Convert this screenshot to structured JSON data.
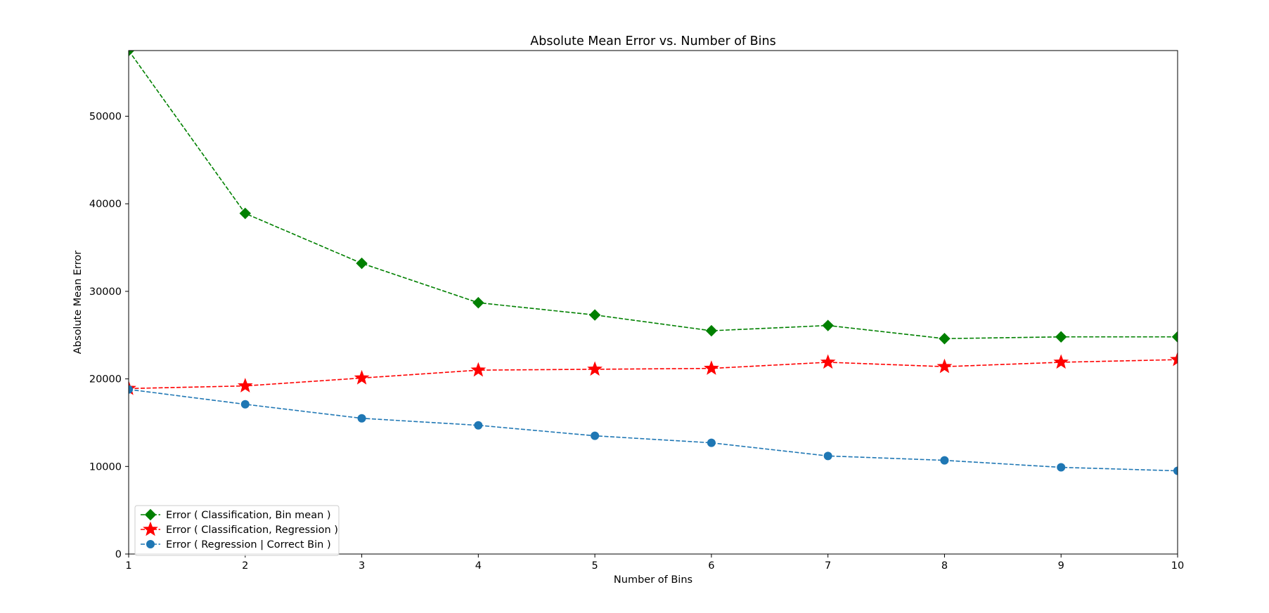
{
  "chart_data": {
    "type": "line",
    "title": "Absolute Mean Error vs. Number of Bins",
    "xlabel": "Number of Bins",
    "ylabel": "Absolute Mean Error",
    "x": [
      1,
      2,
      3,
      4,
      5,
      6,
      7,
      8,
      9,
      10
    ],
    "xlim": [
      1,
      10
    ],
    "ylim": [
      0,
      57500
    ],
    "xticks": [
      1,
      2,
      3,
      4,
      5,
      6,
      7,
      8,
      9,
      10
    ],
    "yticks": [
      0,
      10000,
      20000,
      30000,
      40000,
      50000
    ],
    "grid": false,
    "legend_position": "lower-left",
    "series": [
      {
        "name": "Error ( Classification, Bin mean )",
        "color": "#008000",
        "marker": "diamond",
        "linestyle": "dashed",
        "values": [
          57500,
          38900,
          33200,
          28700,
          27300,
          25500,
          26100,
          24600,
          24800,
          24800
        ]
      },
      {
        "name": "Error ( Classification, Regression )",
        "color": "#ff0000",
        "marker": "star",
        "linestyle": "dashed",
        "values": [
          18900,
          19200,
          20100,
          21000,
          21100,
          21200,
          21900,
          21400,
          21900,
          22200
        ]
      },
      {
        "name": "Error ( Regression | Correct Bin )",
        "color": "#1f77b4",
        "marker": "circle",
        "linestyle": "dashed",
        "values": [
          18800,
          17100,
          15500,
          14700,
          13500,
          12700,
          11200,
          10700,
          9900,
          9500
        ]
      }
    ]
  }
}
